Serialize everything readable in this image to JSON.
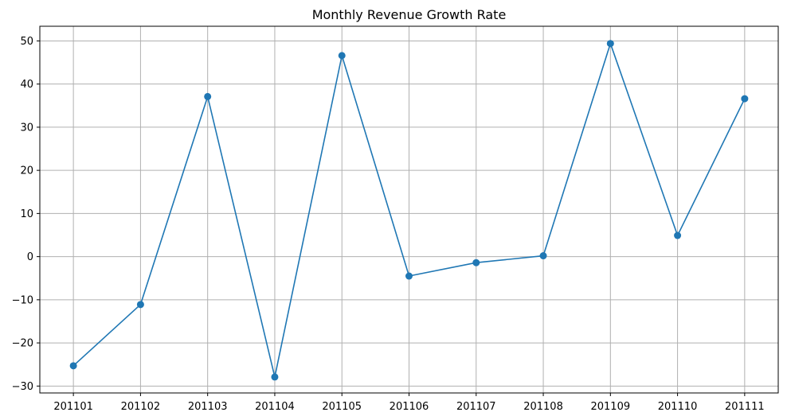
{
  "chart_data": {
    "type": "line",
    "title": "Monthly Revenue Growth Rate",
    "xlabel": "",
    "ylabel": "",
    "categories": [
      "201101",
      "201102",
      "201103",
      "201104",
      "201105",
      "201106",
      "201107",
      "201108",
      "201109",
      "201110",
      "201111"
    ],
    "series": [
      {
        "values": [
          -25.3,
          -11.1,
          37.1,
          -27.9,
          46.6,
          -4.5,
          -1.4,
          0.2,
          49.4,
          4.9,
          36.6
        ],
        "color": "#1f77b4",
        "marker": "circle"
      }
    ],
    "yticks": [
      -30,
      -20,
      -10,
      0,
      10,
      20,
      30,
      40,
      50
    ],
    "ylim": [
      -31.6,
      53.4
    ],
    "grid": true
  }
}
